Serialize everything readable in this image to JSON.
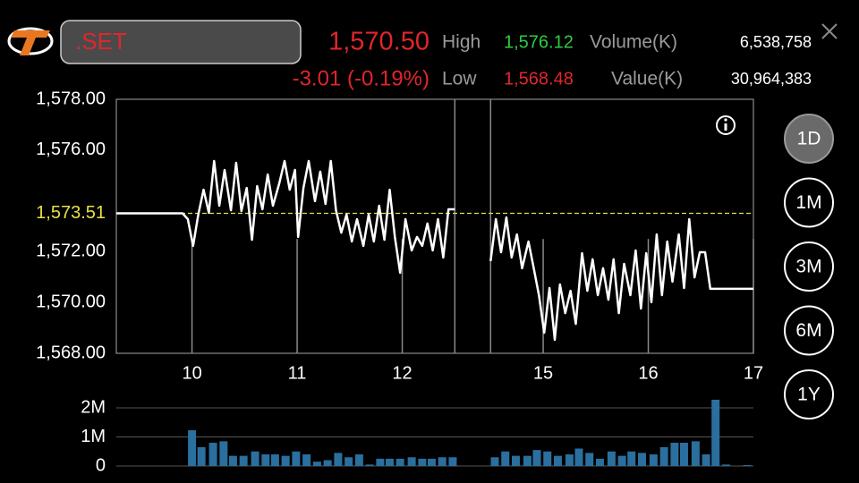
{
  "header": {
    "symbol": ".SET",
    "last": "1,570.50",
    "change": "-3.01 (-0.19%)",
    "high_label": "High",
    "high": "1,576.12",
    "low_label": "Low",
    "low": "1,568.48",
    "volume_label": "Volume(K)",
    "volume": "6,538,758",
    "value_label": "Value(K)",
    "value": "30,964,383"
  },
  "periods": [
    "1D",
    "1M",
    "3M",
    "6M",
    "1Y"
  ],
  "selected_period": "1D",
  "chart_data": [
    {
      "type": "line",
      "color": "#ffffff",
      "x": [
        9.28,
        9.91,
        9.96,
        10.01,
        10.06,
        10.11,
        10.16,
        10.21,
        10.26,
        10.31,
        10.37,
        10.42,
        10.47,
        10.52,
        10.57,
        10.62,
        10.67,
        10.72,
        10.77,
        10.83,
        10.88,
        10.93,
        10.98,
        11.01,
        11.06,
        11.11,
        11.17,
        11.22,
        11.27,
        11.32,
        11.37,
        11.42,
        11.47,
        11.52,
        11.57,
        11.63,
        11.68,
        11.73,
        11.78,
        11.83,
        11.88,
        11.93,
        11.98,
        12.03,
        12.09,
        12.14,
        12.19,
        12.24,
        12.29,
        12.34,
        12.39,
        12.44,
        12.5,
        13.5,
        14.5,
        14.55,
        14.6,
        14.65,
        14.7,
        14.75,
        14.8,
        14.86,
        14.91,
        14.96,
        15.01,
        15.06,
        15.11,
        15.16,
        15.21,
        15.26,
        15.31,
        15.37,
        15.42,
        15.47,
        15.52,
        15.57,
        15.62,
        15.67,
        15.72,
        15.77,
        15.83,
        15.88,
        15.93,
        15.98,
        16.03,
        16.08,
        16.13,
        16.18,
        16.23,
        16.29,
        16.34,
        16.39,
        16.44,
        16.49,
        16.54,
        16.59,
        17
      ],
      "values": [
        1573.51,
        1573.51,
        1573.28,
        1572.23,
        1573.46,
        1574.44,
        1573.53,
        1575.57,
        1573.81,
        1575.22,
        1573.63,
        1575.5,
        1573.6,
        1574.51,
        1572.47,
        1574.58,
        1573.67,
        1575.04,
        1573.81,
        1574.69,
        1575.57,
        1574.44,
        1575.22,
        1572.58,
        1574.51,
        1575.57,
        1573.99,
        1575.15,
        1573.88,
        1575.57,
        1573.63,
        1572.75,
        1573.46,
        1572.4,
        1573.28,
        1572.23,
        1573.46,
        1572.4,
        1573.81,
        1572.47,
        1574.44,
        1572.58,
        1571.17,
        1573.28,
        1572.05,
        1572.58,
        1572.23,
        1573.11,
        1572.05,
        1573.28,
        1571.77,
        1573.67,
        1573.67,
        null,
        1571.63,
        1573.28,
        1571.98,
        1573.35,
        1571.77,
        1572.68,
        1571.35,
        1572.4,
        1571.35,
        1570.29,
        1568.81,
        1570.57,
        1568.53,
        1570.71,
        1569.58,
        1570.46,
        1569.16,
        1571.94,
        1570.46,
        1571.7,
        1570.29,
        1571.35,
        1570.11,
        1571.7,
        1569.58,
        1571.52,
        1570.29,
        1572.05,
        1569.76,
        1571.94,
        1570.01,
        1572.68,
        1570.29,
        1572.4,
        1570.82,
        1572.68,
        1570.57,
        1573.28,
        1570.99,
        1571.98,
        1571.98,
        1570.54,
        1570.54
      ],
      "xlim": [
        9.28,
        17
      ],
      "xbreak": [
        12.5,
        14.5
      ],
      "xticks": [
        10,
        11,
        12,
        15,
        16,
        17
      ],
      "ylim": [
        1568,
        1578
      ],
      "yticks": [
        {
          "value": 1568,
          "label": "1,568.00"
        },
        {
          "value": 1570,
          "label": "1,570.00"
        },
        {
          "value": 1572,
          "label": "1,572.00"
        },
        {
          "value": 1576,
          "label": "1,576.00"
        },
        {
          "value": 1578,
          "label": "1,578.00"
        }
      ],
      "reference": {
        "value": 1573.51,
        "label": "1,573.51",
        "color": "#e8e04a"
      }
    },
    {
      "type": "bar",
      "color": "#2a6f9e",
      "x": [
        10,
        10.09,
        10.2,
        10.3,
        10.39,
        10.49,
        10.6,
        10.7,
        10.79,
        10.89,
        10.99,
        11.09,
        11.19,
        11.29,
        11.39,
        11.49,
        11.59,
        11.69,
        11.79,
        11.88,
        11.98,
        12.09,
        12.19,
        12.28,
        12.38,
        12.48,
        14.54,
        14.64,
        14.74,
        14.85,
        14.94,
        15.04,
        15.14,
        15.25,
        15.34,
        15.44,
        15.54,
        15.65,
        15.75,
        15.84,
        15.94,
        16.05,
        16.15,
        16.25,
        16.34,
        16.45,
        16.55,
        16.64,
        16.74,
        16.94
      ],
      "values": [
        1230000,
        650000,
        800000,
        850000,
        350000,
        350000,
        500000,
        400000,
        400000,
        350000,
        500000,
        400000,
        150000,
        200000,
        450000,
        300000,
        400000,
        50000,
        250000,
        250000,
        250000,
        300000,
        250000,
        250000,
        300000,
        300000,
        300000,
        500000,
        350000,
        350000,
        550000,
        500000,
        350000,
        400000,
        600000,
        450000,
        250000,
        500000,
        350000,
        500000,
        450000,
        400000,
        650000,
        800000,
        800000,
        850000,
        400000,
        2280000,
        50000,
        30000
      ],
      "xlim": [
        9.28,
        17
      ],
      "xbreak": [
        12.5,
        14.5
      ],
      "ylim": [
        0,
        2400000
      ],
      "yticks": [
        0,
        {
          "value": 1000000,
          "label": "1M"
        },
        {
          "value": 2000000,
          "label": "2M"
        }
      ]
    }
  ]
}
